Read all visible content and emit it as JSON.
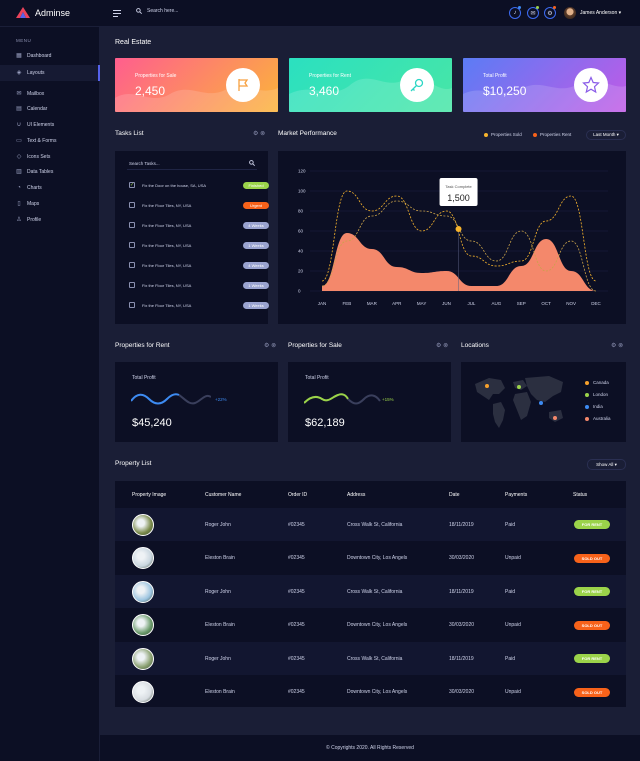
{
  "app": {
    "name": "Adminse"
  },
  "topbar": {
    "search_placeholder": "Search here...",
    "user_name": "James Anderson"
  },
  "sidebar": {
    "menu_label": "MENU",
    "items": [
      {
        "label": "Dashboard",
        "icon": "grid-icon"
      },
      {
        "label": "Layouts",
        "icon": "layers-icon"
      },
      {
        "label": "Mailbox",
        "icon": "mail-icon"
      },
      {
        "label": "Calendar",
        "icon": "calendar-icon"
      },
      {
        "label": "UI Elements",
        "icon": "ui-icon"
      },
      {
        "label": "Text & Forms",
        "icon": "forms-icon"
      },
      {
        "label": "Icons Sets",
        "icon": "tag-icon"
      },
      {
        "label": "Data Tables",
        "icon": "table-icon"
      },
      {
        "label": "Charts",
        "icon": "chart-icon"
      },
      {
        "label": "Maps",
        "icon": "map-icon"
      },
      {
        "label": "Profile",
        "icon": "user-icon"
      }
    ]
  },
  "page": {
    "title": "Real Estate"
  },
  "stats": [
    {
      "label": "Properties for Sale",
      "value": "2,450",
      "icon": "flag-icon"
    },
    {
      "label": "Properties for Rent",
      "value": "3,460",
      "icon": "key-icon"
    },
    {
      "label": "Total Profit",
      "value": "$10,250",
      "icon": "star-icon"
    }
  ],
  "tasks": {
    "title": "Tasks List",
    "search_placeholder": "Search Tasks...",
    "items": [
      {
        "text": "Fix the Door on the house, SA, USA",
        "badge": "Finished",
        "checked": true
      },
      {
        "text": "Fix the Floor Tiles, NY, USA",
        "badge": "Urgent",
        "checked": false
      },
      {
        "text": "Fix the Floor Tiles, NY, USA",
        "badge": "4 Weeks",
        "checked": false
      },
      {
        "text": "Fix the Floor Tiles, NY, USA",
        "badge": "1 Weeks",
        "checked": false
      },
      {
        "text": "Fix the Floor Tiles, NY, USA",
        "badge": "4 Weeks",
        "checked": false
      },
      {
        "text": "Fix the Floor Tiles, NY, USA",
        "badge": "1 Weeks",
        "checked": false
      },
      {
        "text": "Fix the Floor Tiles, NY, USA",
        "badge": "1 Weeks",
        "checked": false
      }
    ]
  },
  "market": {
    "title": "Market Performance",
    "legend_sold": "Properties Sold",
    "legend_rent": "Properties Rent",
    "period": "Last Month",
    "tooltip_label": "Task Complete",
    "tooltip_value": "1,500"
  },
  "chart_data": {
    "type": "area",
    "categories": [
      "JAN",
      "FEB",
      "MAR",
      "APR",
      "MAY",
      "JUN",
      "JUL",
      "AUG",
      "SEP",
      "OCT",
      "NOV",
      "DEC"
    ],
    "ylim": [
      0,
      120
    ],
    "yticks": [
      0,
      20,
      40,
      60,
      80,
      100,
      120
    ],
    "series": [
      {
        "name": "Area",
        "values": [
          5,
          58,
          42,
          24,
          18,
          20,
          5,
          5,
          25,
          52,
          20,
          0
        ]
      },
      {
        "name": "Properties Sold",
        "values": [
          10,
          100,
          80,
          95,
          60,
          80,
          35,
          25,
          30,
          70,
          95,
          10
        ]
      },
      {
        "name": "Properties Rent",
        "values": [
          5,
          50,
          75,
          90,
          80,
          75,
          50,
          30,
          60,
          20,
          50,
          0
        ]
      }
    ],
    "colors": {
      "area": "#f4886b",
      "sold": "#f7b42c",
      "rent": "#f4886b"
    }
  },
  "rent_panel": {
    "title": "Properties for Rent",
    "label": "Total Profit",
    "value": "$45,240",
    "change": "+22%"
  },
  "sale_panel": {
    "title": "Properties for Sale",
    "label": "Total Profit",
    "value": "$62,189",
    "change": "+15%"
  },
  "locations": {
    "title": "Locations",
    "items": [
      {
        "label": "Canada",
        "color": "#f7a12c"
      },
      {
        "label": "London",
        "color": "#9bd34a"
      },
      {
        "label": "India",
        "color": "#3d8bf2"
      },
      {
        "label": "Australia",
        "color": "#f4886b"
      }
    ]
  },
  "property_list": {
    "title": "Property List",
    "filter": "Show All",
    "columns": [
      "Property Image",
      "Customer Name",
      "Order ID",
      "Address",
      "Date",
      "Payments",
      "Status"
    ],
    "rows": [
      {
        "name": "Roger John",
        "order": "#02345",
        "address": "Cross Walk St, California",
        "date": "18/11/2019",
        "payment": "Paid",
        "status": "FOR RENT"
      },
      {
        "name": "Eleston Brain",
        "order": "#02345",
        "address": "Downtown City, Los Angels",
        "date": "30/03/2020",
        "payment": "Unpaid",
        "status": "SOLD OUT"
      },
      {
        "name": "Roger John",
        "order": "#02345",
        "address": "Cross Walk St, California",
        "date": "18/11/2019",
        "payment": "Paid",
        "status": "FOR RENT"
      },
      {
        "name": "Eleston Brain",
        "order": "#02345",
        "address": "Downtown City, Los Angels",
        "date": "30/03/2020",
        "payment": "Unpaid",
        "status": "SOLD OUT"
      },
      {
        "name": "Roger John",
        "order": "#02345",
        "address": "Cross Walk St, California",
        "date": "18/11/2019",
        "payment": "Paid",
        "status": "FOR RENT"
      },
      {
        "name": "Eleston Brain",
        "order": "#02345",
        "address": "Downtown City, Los Angels",
        "date": "30/03/2020",
        "payment": "Unpaid",
        "status": "SOLD OUT"
      }
    ]
  },
  "footer": {
    "text": "© Copyrights 2020. All Rights Reserved"
  },
  "colors": {
    "accent": "#5562eb",
    "green": "#9bd34a",
    "orange": "#f7621a",
    "badge_weeks": "#9aa3d0",
    "area": "#f4886b"
  }
}
